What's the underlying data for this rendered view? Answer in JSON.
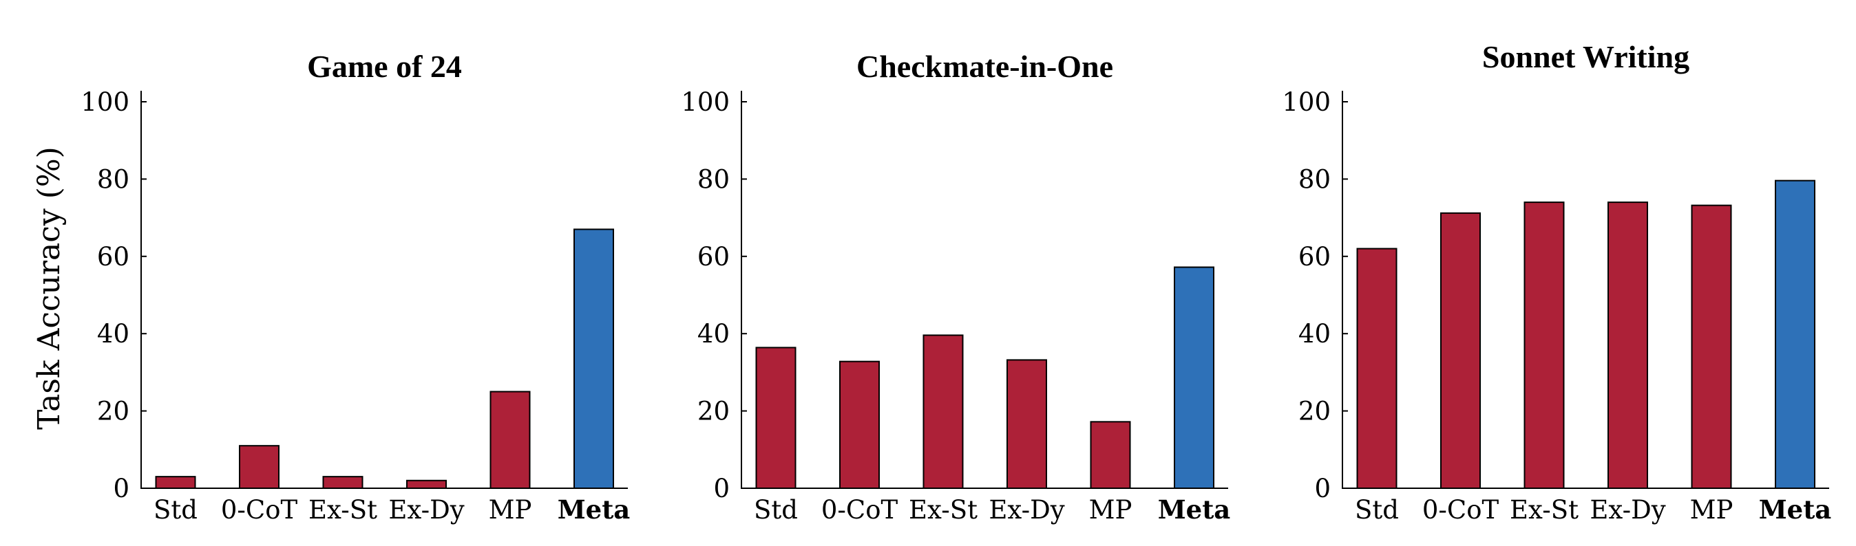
{
  "chart_data": [
    {
      "type": "bar",
      "title": "Game of 24",
      "ylabel": "Task Accuracy (%)",
      "xlabel": "",
      "categories": [
        "Std",
        "0-CoT",
        "Ex-St",
        "Ex-Dy",
        "MP",
        "Meta"
      ],
      "values": [
        3,
        11,
        3,
        2,
        25,
        67
      ],
      "ylim": [
        0,
        100
      ],
      "yticks": [
        0,
        20,
        40,
        60,
        80,
        100
      ]
    },
    {
      "type": "bar",
      "title": "Checkmate-in-One",
      "ylabel": "",
      "xlabel": "",
      "categories": [
        "Std",
        "0-CoT",
        "Ex-St",
        "Ex-Dy",
        "MP",
        "Meta"
      ],
      "values": [
        36.4,
        32.8,
        39.6,
        33.2,
        17.2,
        57.2
      ],
      "ylim": [
        0,
        100
      ],
      "yticks": [
        0,
        20,
        40,
        60,
        80,
        100
      ]
    },
    {
      "type": "bar",
      "title": "Sonnet Writing",
      "ylabel": "",
      "xlabel": "",
      "categories": [
        "Std",
        "0-CoT",
        "Ex-St",
        "Ex-Dy",
        "MP",
        "Meta"
      ],
      "values": [
        62,
        71.2,
        74,
        74,
        73.2,
        79.6
      ],
      "ylim": [
        0,
        100
      ],
      "yticks": [
        0,
        20,
        40,
        60,
        80,
        100
      ]
    }
  ],
  "colors": {
    "baseline": "#AD2138",
    "meta": "#2E71B8"
  },
  "highlight_category": "Meta"
}
